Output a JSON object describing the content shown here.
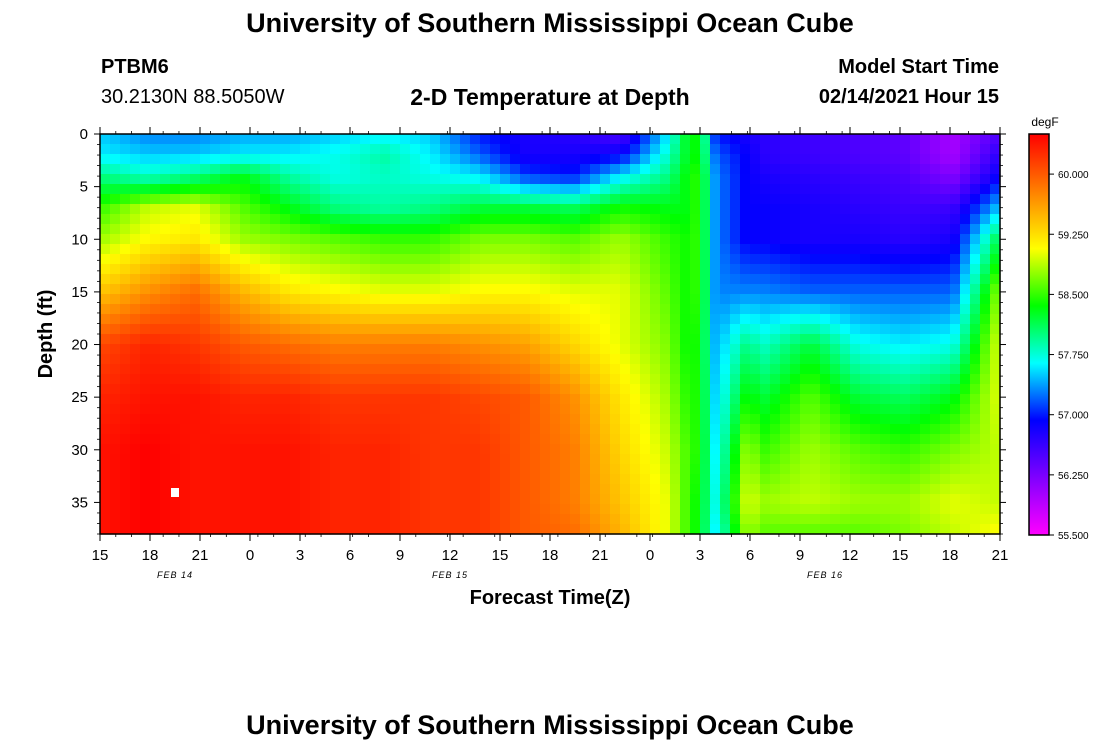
{
  "header": {
    "title_top": "University of Southern Mississippi Ocean Cube",
    "station_id": "PTBM6",
    "station_coords": "30.2130N 88.5050W",
    "plot_title": "2-D Temperature at Depth",
    "model_label": "Model Start Time",
    "model_time": "02/14/2021 Hour 15",
    "title_bottom": "University of Southern Mississippi Ocean Cube"
  },
  "chart_data": {
    "type": "heatmap",
    "title": "2-D Temperature at Depth",
    "xlabel": "Forecast Time(Z)",
    "ylabel": "Depth (ft)",
    "x_ticks": [
      "15",
      "18",
      "21",
      "0",
      "3",
      "6",
      "9",
      "12",
      "15",
      "18",
      "21",
      "0",
      "3",
      "6",
      "9",
      "12",
      "15",
      "18",
      "21"
    ],
    "date_labels": [
      "FEB 14",
      "FEB 15",
      "FEB 16"
    ],
    "y_ticks": [
      0,
      5,
      10,
      15,
      20,
      25,
      30,
      35
    ],
    "ylim": [
      0,
      38
    ],
    "x_hours": [
      0,
      57
    ],
    "colorbar": {
      "unit": "degF",
      "range": [
        55.5,
        60.5
      ],
      "tick_labels": [
        "60.000",
        "59.250",
        "58.500",
        "57.750",
        "57.000",
        "56.250",
        "55.500"
      ],
      "tick_values": [
        60.0,
        59.25,
        58.5,
        57.75,
        57.0,
        56.25,
        55.5
      ],
      "colors": [
        "#ff00ff",
        "#8000ff",
        "#0000ff",
        "#00ffff",
        "#00ff00",
        "#ffff00",
        "#ff8000",
        "#ff0000"
      ]
    },
    "depth_levels": [
      0,
      2,
      4,
      7,
      10,
      15,
      20,
      25,
      30,
      35,
      38
    ],
    "time_hours": [
      0,
      3,
      6,
      9,
      12,
      15,
      18,
      21,
      24,
      27,
      30,
      33,
      36,
      37,
      38,
      39,
      41,
      42,
      45,
      48,
      51,
      54,
      57
    ],
    "values": [
      [
        57.5,
        57.3,
        57.3,
        57.4,
        57.4,
        57.5,
        57.6,
        57.5,
        57.0,
        56.8,
        56.7,
        56.5,
        57.6,
        58.2,
        58.4,
        57.0,
        56.8,
        56.7,
        56.6,
        56.5,
        56.4,
        56.0,
        56.5
      ],
      [
        57.6,
        57.5,
        57.5,
        57.6,
        57.6,
        57.7,
        57.9,
        57.6,
        57.2,
        56.8,
        56.8,
        56.9,
        57.8,
        58.2,
        58.4,
        57.2,
        56.9,
        56.7,
        56.6,
        56.5,
        56.4,
        56.0,
        56.7
      ],
      [
        58.0,
        57.8,
        58.0,
        58.3,
        57.9,
        57.7,
        57.8,
        57.7,
        57.6,
        57.1,
        57.0,
        57.6,
        58.0,
        58.3,
        58.5,
        57.3,
        56.9,
        56.8,
        56.7,
        56.6,
        56.5,
        56.2,
        56.9
      ],
      [
        58.5,
        58.9,
        59.0,
        58.6,
        58.3,
        58.0,
        57.9,
        58.0,
        58.2,
        58.2,
        58.1,
        58.4,
        58.3,
        58.3,
        58.5,
        57.3,
        56.9,
        56.9,
        56.8,
        56.7,
        56.6,
        56.6,
        57.5
      ],
      [
        58.8,
        59.1,
        59.2,
        58.8,
        58.7,
        58.6,
        58.5,
        58.5,
        58.7,
        58.7,
        58.6,
        58.8,
        58.5,
        58.4,
        58.5,
        57.3,
        56.9,
        56.9,
        56.8,
        56.8,
        56.7,
        56.8,
        58.2
      ],
      [
        59.4,
        59.7,
        59.9,
        59.5,
        59.2,
        59.1,
        59.0,
        59.0,
        59.1,
        59.1,
        59.0,
        59.0,
        58.6,
        58.4,
        58.5,
        57.3,
        57.3,
        57.3,
        57.2,
        57.2,
        57.2,
        57.2,
        58.8
      ],
      [
        60.1,
        60.3,
        60.2,
        60.0,
        59.9,
        59.8,
        59.8,
        59.8,
        59.7,
        59.6,
        59.3,
        59.0,
        58.7,
        58.4,
        58.4,
        57.4,
        58.0,
        57.8,
        58.2,
        57.7,
        57.6,
        57.7,
        59.0
      ],
      [
        60.3,
        60.4,
        60.4,
        60.3,
        60.3,
        60.2,
        60.2,
        60.2,
        60.1,
        60.0,
        59.7,
        59.2,
        58.8,
        58.5,
        58.4,
        57.5,
        58.4,
        58.2,
        58.6,
        58.2,
        58.1,
        58.3,
        59.0
      ],
      [
        60.4,
        60.5,
        60.4,
        60.4,
        60.4,
        60.3,
        60.3,
        60.2,
        60.2,
        60.0,
        59.8,
        59.3,
        58.9,
        58.6,
        58.4,
        57.6,
        58.8,
        58.5,
        58.8,
        58.6,
        58.5,
        58.7,
        58.9
      ],
      [
        60.4,
        60.5,
        60.4,
        60.4,
        60.4,
        60.3,
        60.3,
        60.2,
        60.2,
        60.0,
        59.8,
        59.4,
        59.0,
        58.6,
        58.3,
        57.7,
        59.0,
        58.8,
        58.9,
        58.8,
        58.8,
        59.0,
        58.9
      ],
      [
        60.4,
        60.5,
        60.4,
        60.4,
        60.4,
        60.3,
        60.3,
        60.2,
        60.2,
        60.0,
        59.9,
        59.5,
        59.0,
        58.6,
        58.3,
        57.6,
        58.8,
        58.6,
        58.6,
        58.6,
        58.7,
        58.9,
        59.1
      ]
    ]
  }
}
